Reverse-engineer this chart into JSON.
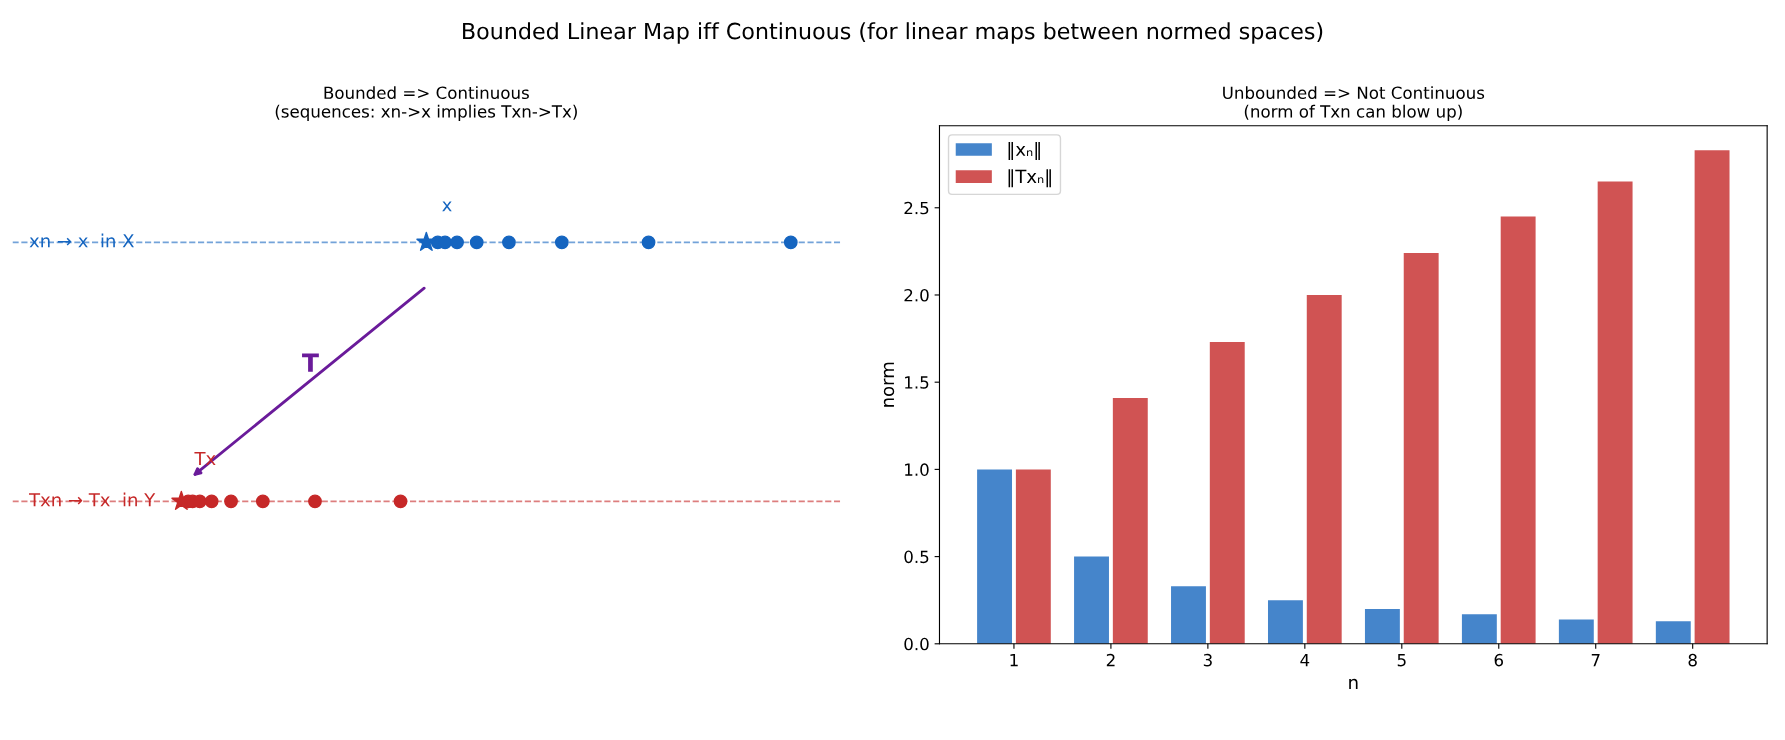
{
  "chart_data": [
    {
      "type": "other",
      "title": "Bounded => Continuous",
      "subtitle": "(sequences: xn->x implies Txn->Tx)",
      "annotations": [
        "Bounded Linear Map iff Continuous (for linear maps between normed spaces)",
        "xn → x  in X",
        "x",
        "T",
        "Txn → Tx  in Y",
        "Tx"
      ]
    },
    {
      "type": "bar",
      "title": "Unbounded => Not Continuous",
      "subtitle": "(norm of Txn can blow up)",
      "xlabel": "n",
      "ylabel": "norm",
      "categories": [
        "1",
        "2",
        "3",
        "4",
        "5",
        "6",
        "7",
        "8"
      ],
      "series": [
        {
          "name": "‖xₙ‖",
          "color": "#4585cb",
          "values": [
            1.0,
            0.5,
            0.33,
            0.25,
            0.2,
            0.17,
            0.14,
            0.13
          ]
        },
        {
          "name": "‖Txₙ‖",
          "color": "#d05353",
          "values": [
            1.0,
            1.41,
            1.73,
            2.0,
            2.24,
            2.45,
            2.65,
            2.83
          ]
        }
      ],
      "ylim": [
        0,
        2.97
      ],
      "yticks": [
        {
          "value": 0,
          "label": "0.0"
        },
        0.5,
        {
          "value": 1,
          "label": "1.0"
        },
        1.5,
        {
          "value": 2,
          "label": "2.0"
        },
        2.5
      ],
      "legend": "top left",
      "grid": false
    }
  ]
}
